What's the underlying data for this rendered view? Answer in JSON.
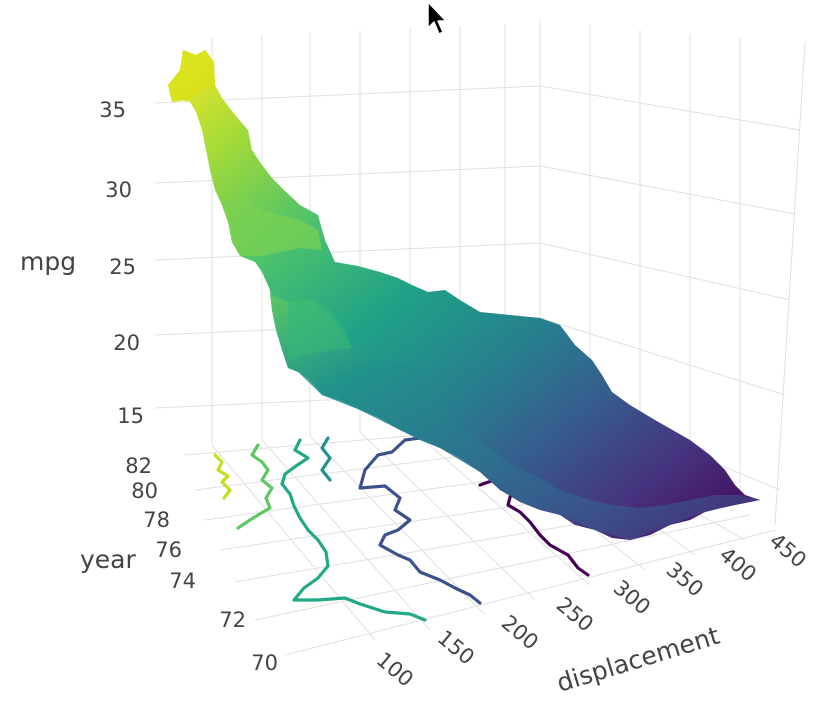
{
  "chart_data": {
    "type": "surface",
    "axes": {
      "x": {
        "label": "displacement",
        "range": [
          70,
          455
        ],
        "ticks": [
          100,
          150,
          200,
          250,
          300,
          350,
          400,
          450
        ]
      },
      "y": {
        "label": "year",
        "range": [
          70,
          82
        ],
        "ticks": [
          70,
          72,
          74,
          76,
          78,
          80,
          82
        ]
      },
      "z": {
        "label": "mpg",
        "range": [
          12,
          38
        ],
        "ticks": [
          15,
          20,
          25,
          30,
          35
        ]
      }
    },
    "grid": true,
    "colorscale": [
      "#440154",
      "#3b528b",
      "#21918c",
      "#5ec962",
      "#fde725"
    ],
    "surface_profile": {
      "displacement": [
        70,
        85,
        100,
        115,
        130,
        150,
        175,
        200,
        225,
        250,
        275,
        300,
        325,
        350,
        375,
        400,
        425,
        455
      ],
      "mpg_at_year_70": [
        25,
        24,
        23.5,
        22,
        20.5,
        19,
        18.5,
        18,
        17.5,
        16.5,
        16,
        15,
        14.5,
        14,
        13.5,
        13,
        12.5,
        12
      ],
      "mpg_at_year_82": [
        37,
        36.5,
        35,
        33,
        30,
        27,
        25,
        23,
        22.5,
        21,
        20,
        19,
        18,
        17,
        16,
        15,
        14,
        13
      ]
    },
    "contours_projected_on_floor": true
  },
  "icons": {
    "cursor": "mouse-pointer-icon"
  }
}
